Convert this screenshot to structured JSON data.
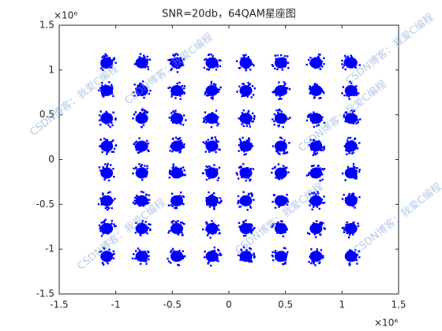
{
  "chart_data": {
    "type": "scatter",
    "title": "SNR=20db，64QAM星座图",
    "x_multiplier": "×10⁶",
    "y_multiplier": "×10⁶",
    "watermark": "CSDN博客：我爱C编程",
    "color": "#0000ff",
    "xlim": [
      -1.5,
      1.5
    ],
    "ylim": [
      -1.5,
      1.5
    ],
    "xticks": [
      -1.5,
      -1,
      -0.5,
      0,
      0.5,
      1,
      1.5
    ],
    "yticks": [
      -1.5,
      -1,
      -0.5,
      0,
      0.5,
      1,
      1.5
    ],
    "x": [
      -1.08,
      -1.08,
      -1.08,
      -1.08,
      -1.08,
      -1.08,
      -1.08,
      -1.08,
      -0.77,
      -0.77,
      -0.77,
      -0.77,
      -0.77,
      -0.77,
      -0.77,
      -0.77,
      -0.46,
      -0.46,
      -0.46,
      -0.46,
      -0.46,
      -0.46,
      -0.46,
      -0.46,
      -0.15,
      -0.15,
      -0.15,
      -0.15,
      -0.15,
      -0.15,
      -0.15,
      -0.15,
      0.15,
      0.15,
      0.15,
      0.15,
      0.15,
      0.15,
      0.15,
      0.15,
      0.46,
      0.46,
      0.46,
      0.46,
      0.46,
      0.46,
      0.46,
      0.46,
      0.77,
      0.77,
      0.77,
      0.77,
      0.77,
      0.77,
      0.77,
      0.77,
      1.08,
      1.08,
      1.08,
      1.08,
      1.08,
      1.08,
      1.08,
      1.08
    ],
    "y": [
      1.08,
      0.77,
      0.46,
      0.15,
      -0.15,
      -0.46,
      -0.77,
      -1.08,
      1.08,
      0.77,
      0.46,
      0.15,
      -0.15,
      -0.46,
      -0.77,
      -1.08,
      1.08,
      0.77,
      0.46,
      0.15,
      -0.15,
      -0.46,
      -0.77,
      -1.08,
      1.08,
      0.77,
      0.46,
      0.15,
      -0.15,
      -0.46,
      -0.77,
      -1.08,
      1.08,
      0.77,
      0.46,
      0.15,
      -0.15,
      -0.46,
      -0.77,
      -1.08,
      1.08,
      0.77,
      0.46,
      0.15,
      -0.15,
      -0.46,
      -0.77,
      -1.08,
      1.08,
      0.77,
      0.46,
      0.15,
      -0.15,
      -0.46,
      -0.77,
      -1.08,
      1.08,
      0.77,
      0.46,
      0.15,
      -0.15,
      -0.46,
      -0.77,
      -1.08
    ]
  }
}
